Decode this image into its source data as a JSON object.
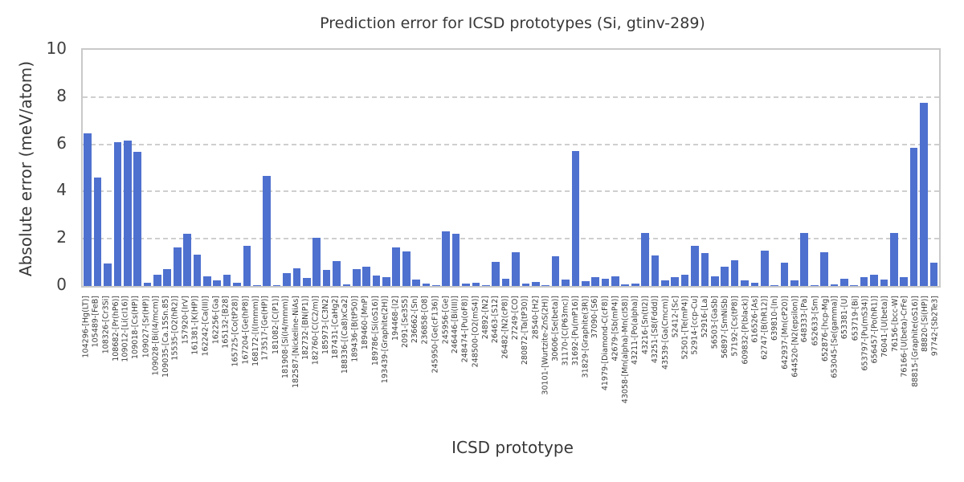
{
  "title": "Prediction error for ICSD prototypes (Si, gtinv-289)",
  "axes": {
    "ylabel": "Absolute error (meV/atom)",
    "xlabel": "ICSD prototype",
    "yticks": [
      0,
      2,
      4,
      6,
      8,
      10
    ]
  },
  "colors": {
    "bar": "#4e70cf",
    "grid": "#cfcfcf",
    "border": "#c9c9c9",
    "text": "#3a3a3a"
  },
  "chart_data": {
    "type": "bar",
    "title": "Prediction error for ICSD prototypes (Si, gtinv-289)",
    "xlabel": "ICSD prototype",
    "ylabel": "Absolute error (meV/atom)",
    "ylim": [
      0,
      10
    ],
    "yticks": [
      0,
      2,
      4,
      6,
      8,
      10
    ],
    "grid": {
      "axis": "y",
      "style": "dashed",
      "lines": [
        2,
        4,
        6,
        8
      ]
    },
    "legend": "none",
    "categories": [
      "104296-[Hg(LT)]",
      "105489-[FeB]",
      "108326-[Cr3Si]",
      "108682-[Pr(hP6)]",
      "109012-[Li(cI16)]",
      "109018-[Cs(HP)]",
      "109027-[Sr(HP)]",
      "109028-[Bi(I4/mcm)]",
      "109035-[Ca.15Sn.85]",
      "15535-[O2(hR2)]",
      "157920-[IrV]",
      "161381-[K(HP)]",
      "162242-[Ca(III)]",
      "162256-[Ga]",
      "165132-[B28]",
      "165725-[Co(tP28)]",
      "167204-[Ge(hP8)]",
      "168172-[I(Immm)]",
      "173517-[Ge(HP)]",
      "181082-[C(P1)]",
      "181908-[Si(I4/mmm)]",
      "182587-[Nickeline-NiAs]",
      "182732-[BN(P1)]",
      "182760-[C(C2/m)]",
      "185973-[C3N2]",
      "187431-[CaHg2]",
      "188336-[(Ca8)xCa2]",
      "189436-[B(tP50)]",
      "189460-[MnP]",
      "189786-[Si(oS16)]",
      "193439-[Graphite(2H)]",
      "194468-[I2]",
      "2091-[Se3S5]",
      "236662-[Sn]",
      "236858-[O8]",
      "245950-[Ge(cF136)]",
      "245956-[Ge]",
      "246446-[Bi(III)]",
      "248474-[Pu(oF8)]",
      "248500-[O2(mS4)]",
      "24892-[N2]",
      "26463-[S12]",
      "26482-[N2(cP8)]",
      "27249-[CO]",
      "280872-[Ta(tP30)]",
      "28540-[H2]",
      "30101-[Wurtzite-ZnS(2H)]",
      "30606-[Se(beta)]",
      "31170-[C(P63mc)]",
      "31692-[Pu(mP16)]",
      "31829-[Graphite(3R)]",
      "37090-[S6]",
      "41979-[Diamond-C(cF8)]",
      "42679-[Sb(mP4)]",
      "43058-[Mn(alpha)-Mn(cI58)]",
      "43211-[Po(alpha)]",
      "43216-[Sn(tI2)]",
      "43251-[S8(Fddd)]",
      "43539-[Ga(Cmcm)]",
      "52412-[Sc]",
      "52501-[Te(mP4)]",
      "52914-[ccp-Cu]",
      "52916-[La]",
      "56503-[GaSb]",
      "56897-[SmNiSb]",
      "57192-[Cs(tP8)]",
      "609832-[P(black)]",
      "616526-[As]",
      "62747-[B(hR12)]",
      "639810-[In]",
      "642937-[Mn(cP20)]",
      "644520-[N2(epsilon)]",
      "648333-[Pa]",
      "652633-[Sm]",
      "652876-[hcp-Mg]",
      "653045-[Se(gamma)]",
      "653381-[U]",
      "653719-[Bi]",
      "653797-[Pu(mS34)]",
      "656457-[Po(hR1)]",
      "76041-[U(beta)]",
      "76156-[bcc-W]",
      "76166-[U(beta)-CrFe]",
      "88815-[Graphite(oS16)]",
      "88820-[Si(HP)]",
      "97742-[Sb2Te3]"
    ],
    "values": [
      6.48,
      4.6,
      0.95,
      6.1,
      6.15,
      5.68,
      0.14,
      0.48,
      0.73,
      1.65,
      2.2,
      1.33,
      0.42,
      0.25,
      0.46,
      0.13,
      1.7,
      0.03,
      4.65,
      0.05,
      0.55,
      0.75,
      0.34,
      2.03,
      0.68,
      1.05,
      0.08,
      0.72,
      0.82,
      0.45,
      0.36,
      1.63,
      1.47,
      0.28,
      0.1,
      0.03,
      2.3,
      2.22,
      0.1,
      0.14,
      0.03,
      1.03,
      0.3,
      1.42,
      0.11,
      0.17,
      0.03,
      1.25,
      0.28,
      5.7,
      0.22,
      0.37,
      0.32,
      0.4,
      0.08,
      0.1,
      2.25,
      1.28,
      0.25,
      0.37,
      0.48,
      1.7,
      1.38,
      0.42,
      0.82,
      1.1,
      0.23,
      0.12,
      1.5,
      0.03,
      0.97,
      0.25,
      2.24,
      0.03,
      1.42,
      0.08,
      0.3,
      0.03,
      0.38,
      0.47,
      0.28,
      2.26,
      0.39,
      5.85,
      7.75,
      1.0
    ]
  }
}
